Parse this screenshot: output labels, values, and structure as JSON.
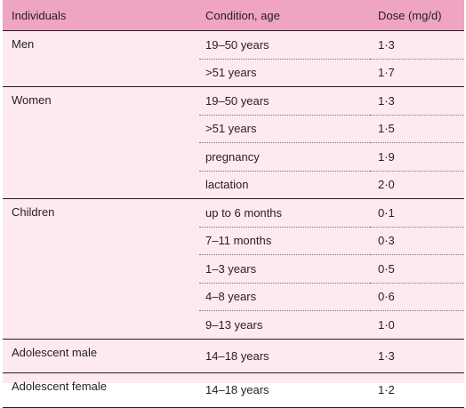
{
  "table": {
    "headers": {
      "individuals": "Individuals",
      "condition": "Condition, age",
      "dose": "Dose (mg/d)"
    },
    "groups": [
      {
        "label": "Men",
        "rows": [
          {
            "condition": "19–50 years",
            "dose": "1·3"
          },
          {
            "condition": ">51 years",
            "dose": "1·7"
          }
        ]
      },
      {
        "label": "Women",
        "rows": [
          {
            "condition": "19–50 years",
            "dose": "1·3"
          },
          {
            "condition": ">51 years",
            "dose": "1·5"
          },
          {
            "condition": "pregnancy",
            "dose": "1·9"
          },
          {
            "condition": "lactation",
            "dose": "2·0"
          }
        ]
      },
      {
        "label": "Children",
        "rows": [
          {
            "condition": "up to 6 months",
            "dose": "0·1"
          },
          {
            "condition": "7–11 months",
            "dose": "0·3"
          },
          {
            "condition": "1–3 years",
            "dose": "0·5"
          },
          {
            "condition": "4–8 years",
            "dose": "0·6"
          },
          {
            "condition": "9–13 years",
            "dose": "1·0"
          }
        ]
      },
      {
        "label": "Adolescent male",
        "rows": [
          {
            "condition": "14–18 years",
            "dose": "1·3"
          }
        ]
      },
      {
        "label": "Adolescent female",
        "rows": [
          {
            "condition": "14–18 years",
            "dose": "1·2"
          }
        ]
      }
    ]
  }
}
